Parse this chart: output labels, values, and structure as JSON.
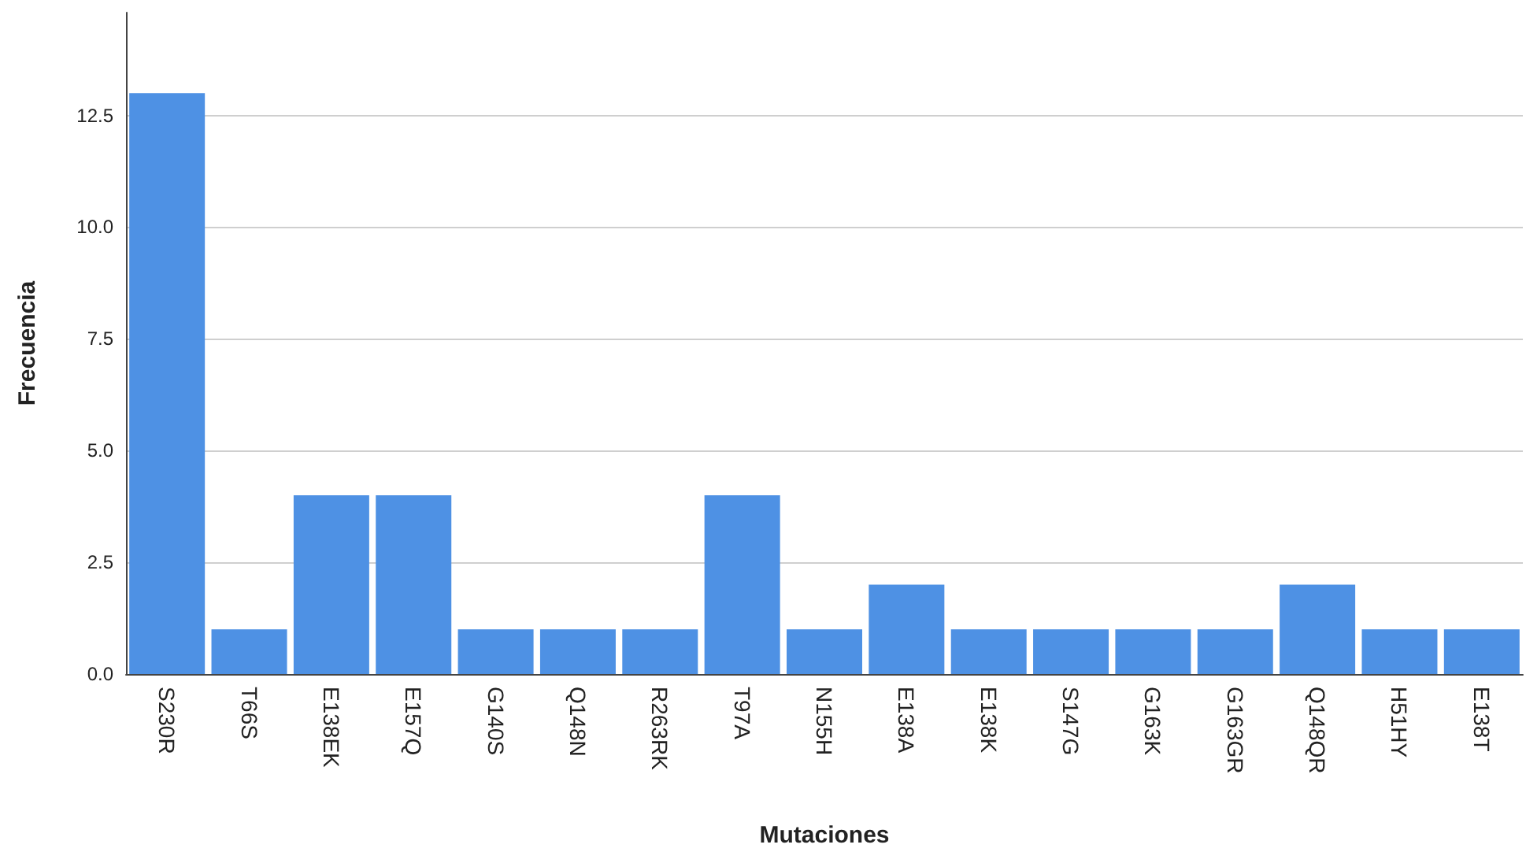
{
  "chart_data": {
    "type": "bar",
    "xlabel": "Mutaciones",
    "ylabel": "Frecuencia",
    "categories": [
      "S230R",
      "T66S",
      "E138EK",
      "E157Q",
      "G140S",
      "Q148N",
      "R263RK",
      "T97A",
      "N155H",
      "E138A",
      "E138K",
      "S147G",
      "G163K",
      "G163GR",
      "Q148QR",
      "H51HY",
      "E138T"
    ],
    "values": [
      13,
      1,
      4,
      4,
      1,
      1,
      1,
      4,
      1,
      2,
      1,
      1,
      1,
      1,
      2,
      1,
      1
    ],
    "color": "#4e91e4",
    "ylim": [
      0,
      14.8
    ],
    "yticks": [
      {
        "value": 0,
        "label": "0.0"
      },
      {
        "value": 2.5,
        "label": "2.5"
      },
      {
        "value": 5,
        "label": "5.0"
      },
      {
        "value": 7.5,
        "label": "7.5"
      },
      {
        "value": 10,
        "label": "10.0"
      },
      {
        "value": 12.5,
        "label": "12.5"
      }
    ],
    "grid": "y"
  }
}
